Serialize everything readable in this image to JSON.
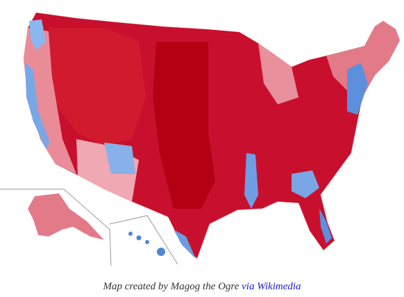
{
  "caption": {
    "text": "Map created by Magog the Ogre",
    "link": "via Wikimedia"
  }
}
